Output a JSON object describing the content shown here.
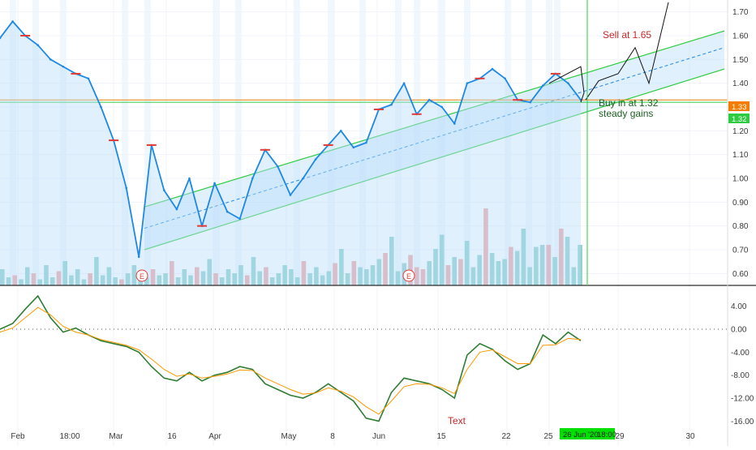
{
  "colors": {
    "price_line": "#1e88e5",
    "price_fill": "#bbdefb",
    "channel": "#2ecc40",
    "channel_fill": "#c7e3fb",
    "red_mark": "#e53935",
    "annotation_line": "#111111",
    "buy_text": "#1b5e20",
    "sell_text": "#c62828",
    "macd": "#2e7d32",
    "signal": "#ff9800",
    "vol_up": "#80cbc4",
    "vol_down": "#ef9a9a",
    "label_orange": "#f57c00",
    "label_green": "#2ecc40",
    "date_highlight": "#00e000"
  },
  "chart_data": [
    {
      "type": "line",
      "panel": "price",
      "x": [
        "Feb 1",
        "Feb 5",
        "Feb 9",
        "Feb 12",
        "Feb 15",
        "Feb 19",
        "Feb 24",
        "Feb 27",
        "Mar 2",
        "Mar 4",
        "Mar 6",
        "Mar 9",
        "Mar 11",
        "Mar 13",
        "Mar 16",
        "Mar 18",
        "Mar 20",
        "Mar 23",
        "Mar 25",
        "Mar 27",
        "Mar 31",
        "Apr 2",
        "Apr 6",
        "Apr 9",
        "Apr 14",
        "Apr 17",
        "Apr 21",
        "Apr 24",
        "Apr 28",
        "May 1",
        "May 6",
        "May 11",
        "May 14",
        "May 18",
        "May 21",
        "May 26",
        "May 29",
        "Jun 3",
        "Jun 8",
        "Jun 11",
        "Jun 15",
        "Jun 18",
        "Jun 22",
        "Jun 24",
        "Jun 26",
        "Jun 29",
        "Jul 1"
      ],
      "values": [
        1.59,
        1.66,
        1.6,
        1.56,
        1.5,
        1.47,
        1.44,
        1.42,
        1.3,
        1.16,
        0.96,
        0.67,
        1.14,
        0.95,
        0.87,
        1.0,
        0.8,
        0.98,
        0.86,
        0.83,
        1.0,
        1.12,
        1.05,
        0.93,
        1.0,
        1.08,
        1.14,
        1.2,
        1.13,
        1.15,
        1.29,
        1.31,
        1.4,
        1.27,
        1.33,
        1.3,
        1.23,
        1.4,
        1.42,
        1.46,
        1.42,
        1.33,
        1.32,
        1.39,
        1.44,
        1.4,
        1.33
      ],
      "title": "",
      "xlabel": "",
      "ylabel": "",
      "ylim": [
        0.55,
        1.75
      ],
      "y_ticks": [
        "1.70",
        "1.60",
        "1.50",
        "1.40",
        "1.30",
        "1.20",
        "1.10",
        "1.00",
        "0.90",
        "0.80",
        "0.70",
        "0.60"
      ],
      "x_ticks": [
        "Feb",
        "18:00",
        "Mar",
        "16",
        "Apr",
        "May",
        "8",
        "Jun",
        "15",
        "22",
        "25",
        "29",
        "30"
      ],
      "price_labels": [
        "1.33",
        "1.32"
      ],
      "crosshair_date_label": "26 Jun '20",
      "crosshair_time_label": "18:00",
      "event_markers": [
        "E",
        "E"
      ],
      "annotations": [
        "Sell at 1.65",
        "Buy in at 1.32",
        "steady gains"
      ],
      "projection_path": [
        1.33,
        1.41,
        1.44,
        1.55,
        1.4,
        1.74
      ],
      "channel_lines": {
        "upper": [
          0.88,
          1.62
        ],
        "middle": [
          0.79,
          1.55
        ],
        "lower": [
          0.7,
          1.46
        ]
      },
      "reference_lines": [
        1.33,
        1.32
      ],
      "grid": true
    },
    {
      "type": "bar",
      "panel": "volume",
      "values": [
        8,
        4,
        5,
        3,
        9,
        6,
        3,
        10,
        4,
        7,
        12,
        5,
        8,
        3,
        6,
        14,
        5,
        9,
        4,
        3,
        6,
        10,
        7,
        4,
        8,
        5,
        6,
        12,
        4,
        8,
        5,
        9,
        7,
        13,
        6,
        4,
        8,
        6,
        10,
        5,
        14,
        7,
        9,
        4,
        6,
        10,
        8,
        4,
        12,
        6,
        9,
        5,
        7,
        11,
        18,
        6,
        12,
        9,
        8,
        10,
        13,
        16,
        24,
        7,
        11,
        15,
        9,
        8,
        12,
        18,
        25,
        10,
        14,
        13,
        22,
        9,
        15,
        38,
        16,
        12,
        13,
        19,
        17,
        28,
        9,
        19,
        20,
        20,
        14,
        28,
        24,
        9,
        20
      ],
      "direction": [
        "u",
        "u",
        "d",
        "u",
        "u",
        "d",
        "u",
        "u",
        "u",
        "d",
        "u",
        "u",
        "u",
        "u",
        "d",
        "u",
        "u",
        "u",
        "u",
        "d",
        "u",
        "u",
        "u",
        "u",
        "d",
        "u",
        "u",
        "d",
        "u",
        "u",
        "u",
        "d",
        "u",
        "u",
        "d",
        "u",
        "u",
        "u",
        "u",
        "d",
        "u",
        "u",
        "d",
        "u",
        "u",
        "u",
        "u",
        "u",
        "d",
        "u",
        "u",
        "u",
        "u",
        "d",
        "u",
        "u",
        "d",
        "u",
        "u",
        "u",
        "u",
        "d",
        "u",
        "u",
        "u",
        "d",
        "d",
        "d",
        "u",
        "u",
        "u",
        "d",
        "u",
        "d",
        "u",
        "u",
        "u",
        "d",
        "u",
        "u",
        "u",
        "d",
        "u",
        "u",
        "u",
        "u",
        "u",
        "d",
        "u",
        "d",
        "u",
        "u",
        "u"
      ]
    },
    {
      "type": "line",
      "panel": "oscillator",
      "series": [
        {
          "values": [
            0.0,
            1.0,
            3.5,
            5.8,
            2.0,
            -0.5,
            0.2,
            -1.0,
            -2.0,
            -2.5,
            -3.0,
            -4.0,
            -6.5,
            -8.5,
            -9.0,
            -7.5,
            -9.0,
            -8.0,
            -7.5,
            -6.5,
            -7.0,
            -9.5,
            -10.5,
            -11.5,
            -12.0,
            -11.0,
            -9.5,
            -11.0,
            -12.5,
            -15.5,
            -16.0,
            -11.0,
            -8.5,
            -9.0,
            -9.5,
            -10.5,
            -12.0,
            -4.5,
            -2.5,
            -3.5,
            -5.5,
            -7.0,
            -6.0,
            -1.0,
            -2.5,
            -0.5,
            -2.0
          ]
        },
        {
          "values": [
            -0.5,
            0.2,
            2.0,
            3.8,
            2.5,
            0.5,
            -0.5,
            -1.0,
            -1.8,
            -2.3,
            -2.8,
            -3.6,
            -5.2,
            -7.0,
            -8.2,
            -7.8,
            -8.5,
            -8.2,
            -7.8,
            -7.1,
            -7.2,
            -8.5,
            -9.5,
            -10.5,
            -11.3,
            -11.1,
            -10.2,
            -10.8,
            -11.8,
            -13.5,
            -14.8,
            -12.5,
            -10.0,
            -9.5,
            -9.6,
            -10.2,
            -11.2,
            -7.0,
            -4.0,
            -3.6,
            -4.8,
            -6.0,
            -6.0,
            -2.8,
            -2.7,
            -1.6,
            -1.8
          ]
        }
      ],
      "ylim": [
        -17.5,
        6.5
      ],
      "y_ticks": [
        "4.00",
        "0.00",
        "-4.00",
        "-8.00",
        "-12.00",
        "-16.00"
      ],
      "zero_level": 0,
      "annotations": [
        "Text"
      ]
    }
  ]
}
